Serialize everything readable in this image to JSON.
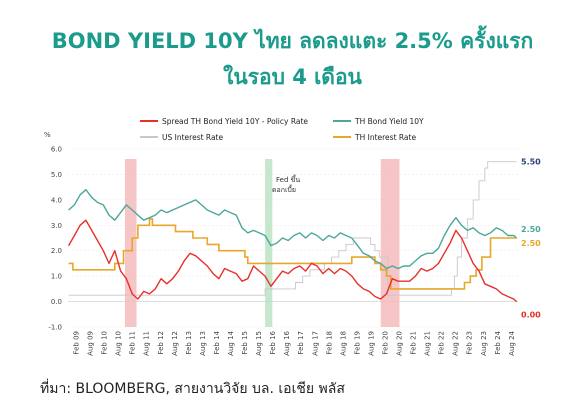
{
  "chart_data": {
    "type": "line",
    "title_line1": "BOND YIELD 10Y ไทย ลดลงแตะ 2.5% ครั้งแรก",
    "title_line2": "ในรอบ 4 เดือน",
    "ylabel": "%",
    "ylim": [
      -1.0,
      6.0
    ],
    "yticks": [
      "-1.0",
      "0.0",
      "1.0",
      "2.0",
      "3.0",
      "4.0",
      "5.0",
      "6.0"
    ],
    "ytick_values": [
      -1,
      0,
      1,
      2,
      3,
      4,
      5,
      6
    ],
    "xticks": [
      "Feb 09",
      "Aug 09",
      "Feb 10",
      "Aug 10",
      "Feb 11",
      "Aug 11",
      "Feb 12",
      "Aug 12",
      "Feb 13",
      "Aug 13",
      "Feb 14",
      "Aug 14",
      "Feb 15",
      "Aug 15",
      "Feb 16",
      "Aug 16",
      "Feb 17",
      "Aug 17",
      "Feb 18",
      "Aug 18",
      "Feb 19",
      "Aug 19",
      "Feb 20",
      "Aug 20",
      "Feb 21",
      "Aug 21",
      "Feb 22",
      "Aug 22",
      "Feb 23",
      "Aug 23",
      "Feb 24",
      "Aug 24"
    ],
    "xrange": [
      2009.08,
      2024.65
    ],
    "grid": true,
    "legend_position": "top",
    "annotation_line1": "Fed ขึ้น",
    "annotation_line2": "ดอกเบี้ย",
    "source": "ที่มา: BLOOMBERG, สายงานวิจัย บล. เอเชีย พลัส",
    "highlight_bands": [
      {
        "from": 2011.05,
        "to": 2011.45,
        "color": "#f4b6b8"
      },
      {
        "from": 2015.9,
        "to": 2016.15,
        "color": "#b7e1c1"
      },
      {
        "from": 2019.9,
        "to": 2020.55,
        "color": "#f4b6b8"
      }
    ],
    "series": [
      {
        "name": "Spread TH Bond Yield 10Y - Policy Rate",
        "color": "#e8302a",
        "end_label": "0.00",
        "x": [
          2009.1,
          2009.3,
          2009.5,
          2009.7,
          2009.9,
          2010.1,
          2010.3,
          2010.5,
          2010.7,
          2010.9,
          2011.1,
          2011.3,
          2011.5,
          2011.7,
          2011.9,
          2012.1,
          2012.3,
          2012.5,
          2012.7,
          2012.9,
          2013.1,
          2013.3,
          2013.5,
          2013.7,
          2013.9,
          2014.1,
          2014.3,
          2014.5,
          2014.7,
          2014.9,
          2015.1,
          2015.3,
          2015.5,
          2015.7,
          2015.9,
          2016.1,
          2016.3,
          2016.5,
          2016.7,
          2016.9,
          2017.1,
          2017.3,
          2017.5,
          2017.7,
          2017.9,
          2018.1,
          2018.3,
          2018.5,
          2018.7,
          2018.9,
          2019.1,
          2019.3,
          2019.5,
          2019.7,
          2019.9,
          2020.1,
          2020.3,
          2020.5,
          2020.7,
          2020.9,
          2021.1,
          2021.3,
          2021.5,
          2021.7,
          2021.9,
          2022.1,
          2022.3,
          2022.5,
          2022.7,
          2022.9,
          2023.1,
          2023.3,
          2023.5,
          2023.7,
          2023.9,
          2024.1,
          2024.3,
          2024.5,
          2024.6
        ],
        "values": [
          2.2,
          2.6,
          3.0,
          3.2,
          2.8,
          2.4,
          2.0,
          1.5,
          2.0,
          1.2,
          0.9,
          0.3,
          0.1,
          0.4,
          0.3,
          0.5,
          0.9,
          0.7,
          0.9,
          1.2,
          1.6,
          1.9,
          1.8,
          1.6,
          1.4,
          1.1,
          0.9,
          1.3,
          1.2,
          1.1,
          0.8,
          0.9,
          1.4,
          1.2,
          1.0,
          0.6,
          0.9,
          1.2,
          1.1,
          1.3,
          1.4,
          1.2,
          1.5,
          1.4,
          1.1,
          1.3,
          1.1,
          1.3,
          1.2,
          1.0,
          0.7,
          0.5,
          0.4,
          0.2,
          0.1,
          0.3,
          0.9,
          0.8,
          0.8,
          0.8,
          1.0,
          1.3,
          1.2,
          1.3,
          1.5,
          1.9,
          2.3,
          2.8,
          2.5,
          2.0,
          1.5,
          1.2,
          0.7,
          0.6,
          0.5,
          0.3,
          0.2,
          0.1,
          0.0
        ]
      },
      {
        "name": "TH Bond Yield 10Y",
        "color": "#4aa89a",
        "end_label": "2.50",
        "x": [
          2009.1,
          2009.3,
          2009.5,
          2009.7,
          2009.9,
          2010.1,
          2010.3,
          2010.5,
          2010.7,
          2010.9,
          2011.1,
          2011.3,
          2011.5,
          2011.7,
          2011.9,
          2012.1,
          2012.3,
          2012.5,
          2012.7,
          2012.9,
          2013.1,
          2013.3,
          2013.5,
          2013.7,
          2013.9,
          2014.1,
          2014.3,
          2014.5,
          2014.7,
          2014.9,
          2015.1,
          2015.3,
          2015.5,
          2015.7,
          2015.9,
          2016.1,
          2016.3,
          2016.5,
          2016.7,
          2016.9,
          2017.1,
          2017.3,
          2017.5,
          2017.7,
          2017.9,
          2018.1,
          2018.3,
          2018.5,
          2018.7,
          2018.9,
          2019.1,
          2019.3,
          2019.5,
          2019.7,
          2019.9,
          2020.1,
          2020.3,
          2020.5,
          2020.7,
          2020.9,
          2021.1,
          2021.3,
          2021.5,
          2021.7,
          2021.9,
          2022.1,
          2022.3,
          2022.5,
          2022.7,
          2022.9,
          2023.1,
          2023.3,
          2023.5,
          2023.7,
          2023.9,
          2024.1,
          2024.3,
          2024.5,
          2024.6
        ],
        "values": [
          3.6,
          3.8,
          4.2,
          4.4,
          4.1,
          3.9,
          3.8,
          3.4,
          3.2,
          3.5,
          3.8,
          3.6,
          3.4,
          3.2,
          3.3,
          3.4,
          3.6,
          3.5,
          3.6,
          3.7,
          3.8,
          3.9,
          4.0,
          3.8,
          3.6,
          3.5,
          3.4,
          3.6,
          3.5,
          3.4,
          2.9,
          2.7,
          2.8,
          2.7,
          2.6,
          2.2,
          2.3,
          2.5,
          2.4,
          2.6,
          2.7,
          2.5,
          2.7,
          2.6,
          2.4,
          2.6,
          2.5,
          2.7,
          2.6,
          2.5,
          2.2,
          1.9,
          1.8,
          1.6,
          1.5,
          1.3,
          1.4,
          1.3,
          1.4,
          1.4,
          1.6,
          1.8,
          1.9,
          1.9,
          2.1,
          2.6,
          3.0,
          3.3,
          3.0,
          2.8,
          2.9,
          2.7,
          2.6,
          2.7,
          2.9,
          2.8,
          2.6,
          2.6,
          2.5
        ]
      },
      {
        "name": "US Interest Rate",
        "color": "#c8c8c8",
        "end_label": "5.50",
        "x": [
          2009.1,
          2015.9,
          2016.95,
          2017.2,
          2017.45,
          2017.95,
          2018.2,
          2018.45,
          2018.7,
          2018.95,
          2019.55,
          2019.7,
          2019.85,
          2020.15,
          2020.25,
          2022.2,
          2022.35,
          2022.45,
          2022.55,
          2022.7,
          2022.9,
          2023.1,
          2023.3,
          2023.5,
          2023.6,
          2024.6
        ],
        "values": [
          0.25,
          0.5,
          0.75,
          1.0,
          1.25,
          1.5,
          1.75,
          2.0,
          2.25,
          2.5,
          2.25,
          2.0,
          1.75,
          0.25,
          0.25,
          0.25,
          0.5,
          1.0,
          1.75,
          2.5,
          3.25,
          4.0,
          4.75,
          5.25,
          5.5,
          5.5
        ]
      },
      {
        "name": "TH Interest Rate",
        "color": "#e8a72a",
        "end_label": "2.50",
        "x": [
          2009.1,
          2009.25,
          2010.5,
          2010.7,
          2011.0,
          2011.3,
          2011.5,
          2011.9,
          2012.0,
          2012.3,
          2012.8,
          2013.2,
          2013.4,
          2013.9,
          2014.3,
          2015.2,
          2015.3,
          2018.9,
          2019.7,
          2019.9,
          2020.1,
          2020.25,
          2022.6,
          2022.8,
          2023.0,
          2023.2,
          2023.4,
          2023.7,
          2024.6
        ],
        "values": [
          1.5,
          1.25,
          1.25,
          1.5,
          2.0,
          2.5,
          3.0,
          3.25,
          3.0,
          3.0,
          2.75,
          2.75,
          2.5,
          2.25,
          2.0,
          1.75,
          1.5,
          1.75,
          1.5,
          1.25,
          1.0,
          0.5,
          0.5,
          0.75,
          1.0,
          1.25,
          1.75,
          2.5,
          2.5
        ]
      }
    ]
  }
}
